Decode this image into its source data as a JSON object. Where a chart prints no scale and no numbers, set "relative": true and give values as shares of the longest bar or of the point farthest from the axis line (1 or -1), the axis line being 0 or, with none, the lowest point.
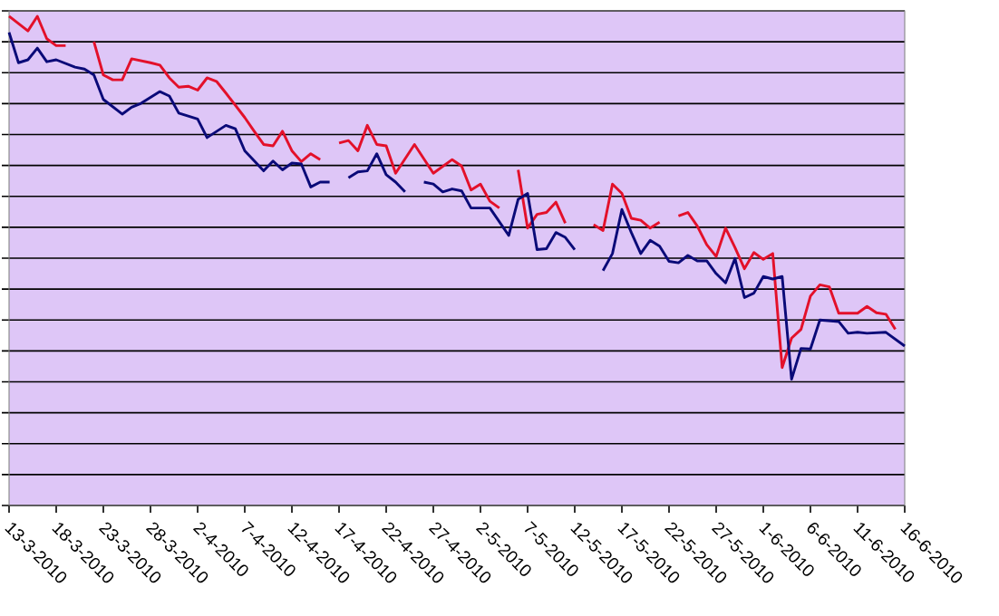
{
  "chart_data": {
    "type": "line",
    "relative": true,
    "grid": "y",
    "tick_labels": "x",
    "marker": "none",
    "line_style": "solid",
    "xlim": [
      "2010-03-13",
      "2010-06-16"
    ],
    "xticks": [
      {
        "value": "2010-03-13",
        "label": "13-3-2010"
      },
      {
        "value": "2010-03-18",
        "label": "18-3-2010"
      },
      {
        "value": "2010-03-23",
        "label": "23-3-2010"
      },
      {
        "value": "2010-03-28",
        "label": "28-3-2010"
      },
      {
        "value": "2010-04-02",
        "label": "2-4-2010"
      },
      {
        "value": "2010-04-07",
        "label": "7-4-2010"
      },
      {
        "value": "2010-04-12",
        "label": "12-4-2010"
      },
      {
        "value": "2010-04-17",
        "label": "17-4-2010"
      },
      {
        "value": "2010-04-22",
        "label": "22-4-2010"
      },
      {
        "value": "2010-04-27",
        "label": "27-4-2010"
      },
      {
        "value": "2010-05-02",
        "label": "2-5-2010"
      },
      {
        "value": "2010-05-07",
        "label": "7-5-2010"
      },
      {
        "value": "2010-05-12",
        "label": "12-5-2010"
      },
      {
        "value": "2010-05-17",
        "label": "17-5-2010"
      },
      {
        "value": "2010-05-22",
        "label": "22-5-2010"
      },
      {
        "value": "2010-05-27",
        "label": "27-5-2010"
      },
      {
        "value": "2010-06-01",
        "label": "1-6-2010"
      },
      {
        "value": "2010-06-06",
        "label": "6-6-2010"
      },
      {
        "value": "2010-06-11",
        "label": "11-6-2010"
      },
      {
        "value": "2010-06-16",
        "label": "16-6-2010"
      }
    ],
    "series": [
      {
        "color": "#e3102a",
        "x": [
          "2010-03-13",
          "2010-03-15",
          "2010-03-16",
          "2010-03-17",
          "2010-03-18",
          "2010-03-19",
          "2010-03-20",
          "2010-03-22",
          "2010-03-23",
          "2010-03-24",
          "2010-03-25",
          "2010-03-26",
          "2010-03-28",
          "2010-03-29",
          "2010-03-30",
          "2010-03-31",
          "2010-04-01",
          "2010-04-02",
          "2010-04-03",
          "2010-04-04",
          "2010-04-05",
          "2010-04-07",
          "2010-04-08",
          "2010-04-09",
          "2010-04-10",
          "2010-04-11",
          "2010-04-12",
          "2010-04-13",
          "2010-04-14",
          "2010-04-15",
          "2010-04-16",
          "2010-04-17",
          "2010-04-18",
          "2010-04-19",
          "2010-04-20",
          "2010-04-21",
          "2010-04-22",
          "2010-04-23",
          "2010-04-25",
          "2010-04-27",
          "2010-04-29",
          "2010-04-30",
          "2010-05-01",
          "2010-05-02",
          "2010-05-03",
          "2010-05-04",
          "2010-05-05",
          "2010-05-06",
          "2010-05-07",
          "2010-05-08",
          "2010-05-09",
          "2010-05-10",
          "2010-05-11",
          "2010-05-12",
          "2010-05-14",
          "2010-05-15",
          "2010-05-16",
          "2010-05-17",
          "2010-05-18",
          "2010-05-19",
          "2010-05-20",
          "2010-05-21",
          "2010-05-22",
          "2010-05-23",
          "2010-05-24",
          "2010-05-25",
          "2010-05-26",
          "2010-05-27",
          "2010-05-28",
          "2010-05-29",
          "2010-05-30",
          "2010-05-31",
          "2010-06-01",
          "2010-06-02",
          "2010-06-03",
          "2010-06-04",
          "2010-06-05",
          "2010-06-06",
          "2010-06-07",
          "2010-06-08",
          "2010-06-09",
          "2010-06-11",
          "2010-06-12",
          "2010-06-13",
          "2010-06-14",
          "2010-06-15"
        ],
        "values": [
          1.0,
          0.97,
          1.0,
          0.954,
          0.94,
          0.94,
          null,
          0.948,
          0.88,
          0.87,
          0.87,
          0.913,
          0.905,
          0.9,
          0.874,
          0.855,
          0.857,
          0.849,
          0.874,
          0.867,
          0.843,
          0.793,
          0.765,
          0.738,
          0.735,
          0.765,
          0.725,
          0.703,
          0.719,
          0.707,
          null,
          0.741,
          0.746,
          0.725,
          0.777,
          0.738,
          0.735,
          0.679,
          0.738,
          0.679,
          0.707,
          0.694,
          0.645,
          0.657,
          0.622,
          0.608,
          null,
          0.686,
          0.567,
          0.595,
          0.599,
          0.62,
          0.577,
          null,
          0.574,
          0.562,
          0.657,
          0.638,
          0.587,
          0.583,
          0.567,
          0.579,
          null,
          0.592,
          0.599,
          0.571,
          0.533,
          0.509,
          0.567,
          0.527,
          0.484,
          0.517,
          0.503,
          0.515,
          0.282,
          0.342,
          0.36,
          0.428,
          0.451,
          0.447,
          0.393,
          0.393,
          0.407,
          0.394,
          0.391,
          0.36
        ]
      },
      {
        "color": "#0a0a78",
        "x": [
          "2010-03-13",
          "2010-03-14",
          "2010-03-15",
          "2010-03-16",
          "2010-03-17",
          "2010-03-18",
          "2010-03-20",
          "2010-03-21",
          "2010-03-22",
          "2010-03-23",
          "2010-03-25",
          "2010-03-26",
          "2010-03-27",
          "2010-03-29",
          "2010-03-30",
          "2010-03-31",
          "2010-04-02",
          "2010-04-03",
          "2010-04-05",
          "2010-04-06",
          "2010-04-07",
          "2010-04-09",
          "2010-04-10",
          "2010-04-11",
          "2010-04-12",
          "2010-04-13",
          "2010-04-14",
          "2010-04-15",
          "2010-04-16",
          "2010-04-17",
          "2010-04-18",
          "2010-04-19",
          "2010-04-20",
          "2010-04-21",
          "2010-04-22",
          "2010-04-23",
          "2010-04-24",
          "2010-04-25",
          "2010-04-26",
          "2010-04-27",
          "2010-04-28",
          "2010-04-29",
          "2010-04-30",
          "2010-05-01",
          "2010-05-03",
          "2010-05-05",
          "2010-05-06",
          "2010-05-07",
          "2010-05-08",
          "2010-05-09",
          "2010-05-10",
          "2010-05-11",
          "2010-05-12",
          "2010-05-13",
          "2010-05-15",
          "2010-05-16",
          "2010-05-17",
          "2010-05-18",
          "2010-05-19",
          "2010-05-20",
          "2010-05-21",
          "2010-05-22",
          "2010-05-23",
          "2010-05-24",
          "2010-05-25",
          "2010-05-26",
          "2010-05-27",
          "2010-05-28",
          "2010-05-29",
          "2010-05-30",
          "2010-05-31",
          "2010-06-01",
          "2010-06-02",
          "2010-06-03",
          "2010-06-04",
          "2010-06-05",
          "2010-06-06",
          "2010-06-07",
          "2010-06-09",
          "2010-06-10",
          "2010-06-11",
          "2010-06-12",
          "2010-06-14",
          "2010-06-16"
        ],
        "values": [
          0.967,
          0.905,
          0.911,
          0.935,
          0.907,
          0.911,
          0.896,
          0.892,
          0.88,
          0.83,
          0.8,
          0.814,
          0.822,
          0.846,
          0.837,
          0.802,
          0.79,
          0.752,
          0.777,
          0.77,
          0.725,
          0.684,
          0.704,
          0.686,
          0.7,
          0.698,
          0.651,
          0.661,
          0.661,
          null,
          0.67,
          0.682,
          0.684,
          0.719,
          0.676,
          0.661,
          0.641,
          null,
          0.661,
          0.657,
          0.641,
          0.647,
          0.643,
          0.608,
          0.608,
          0.552,
          0.626,
          0.638,
          0.523,
          0.525,
          0.558,
          0.548,
          0.523,
          null,
          0.48,
          0.515,
          0.605,
          0.558,
          0.515,
          0.542,
          0.53,
          0.499,
          0.496,
          0.511,
          0.5,
          0.5,
          0.474,
          0.455,
          0.505,
          0.425,
          0.434,
          0.468,
          0.463,
          0.468,
          0.258,
          0.321,
          0.32,
          0.379,
          0.376,
          0.352,
          0.354,
          0.352,
          0.354,
          0.326
        ]
      }
    ]
  }
}
